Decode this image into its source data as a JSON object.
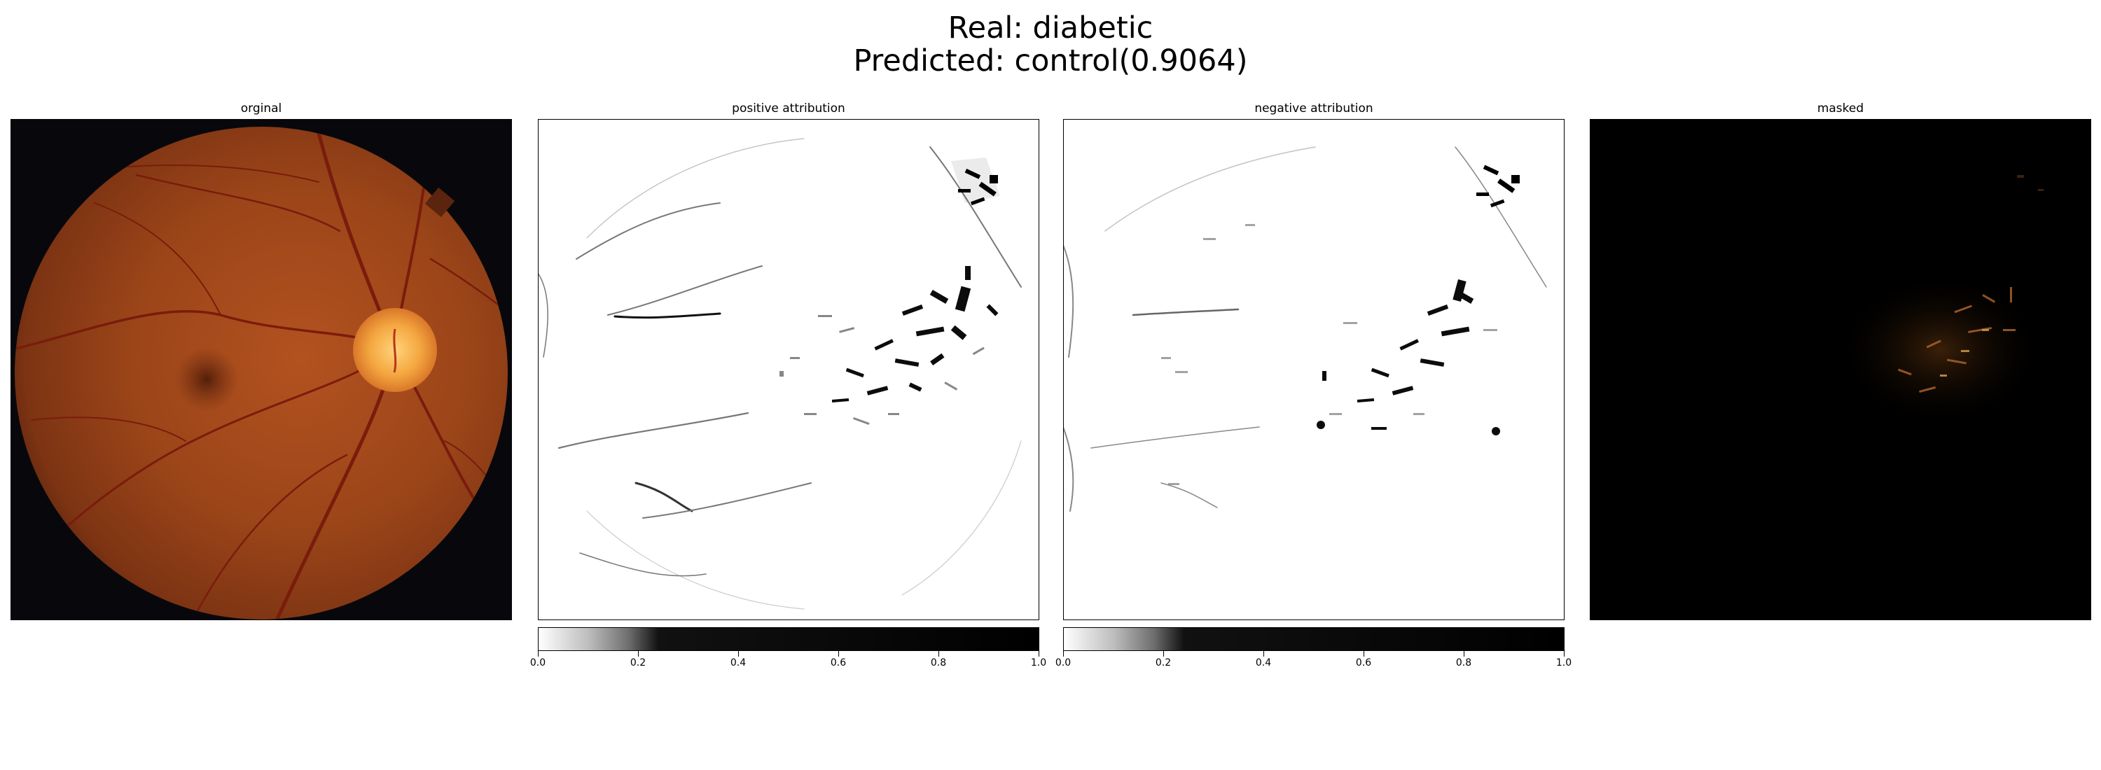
{
  "figure": {
    "title_line1": "Real: diabetic",
    "title_line2": "Predicted: control(0.9064)"
  },
  "panels": [
    {
      "title": "orginal"
    },
    {
      "title": "positive attribution"
    },
    {
      "title": "negative attribution"
    },
    {
      "title": "masked"
    }
  ],
  "colorbar": {
    "ticks": [
      "0.0",
      "0.2",
      "0.4",
      "0.6",
      "0.8",
      "1.0"
    ],
    "saturation_point": 0.25,
    "colormap": "white-to-black"
  },
  "colors": {
    "background": "#ffffff",
    "fundus_dark_bg": "#08080c",
    "fundus_tissue": "#a54a1e",
    "optic_disc": "#f7b24a",
    "vessel": "#7a1c0c"
  }
}
